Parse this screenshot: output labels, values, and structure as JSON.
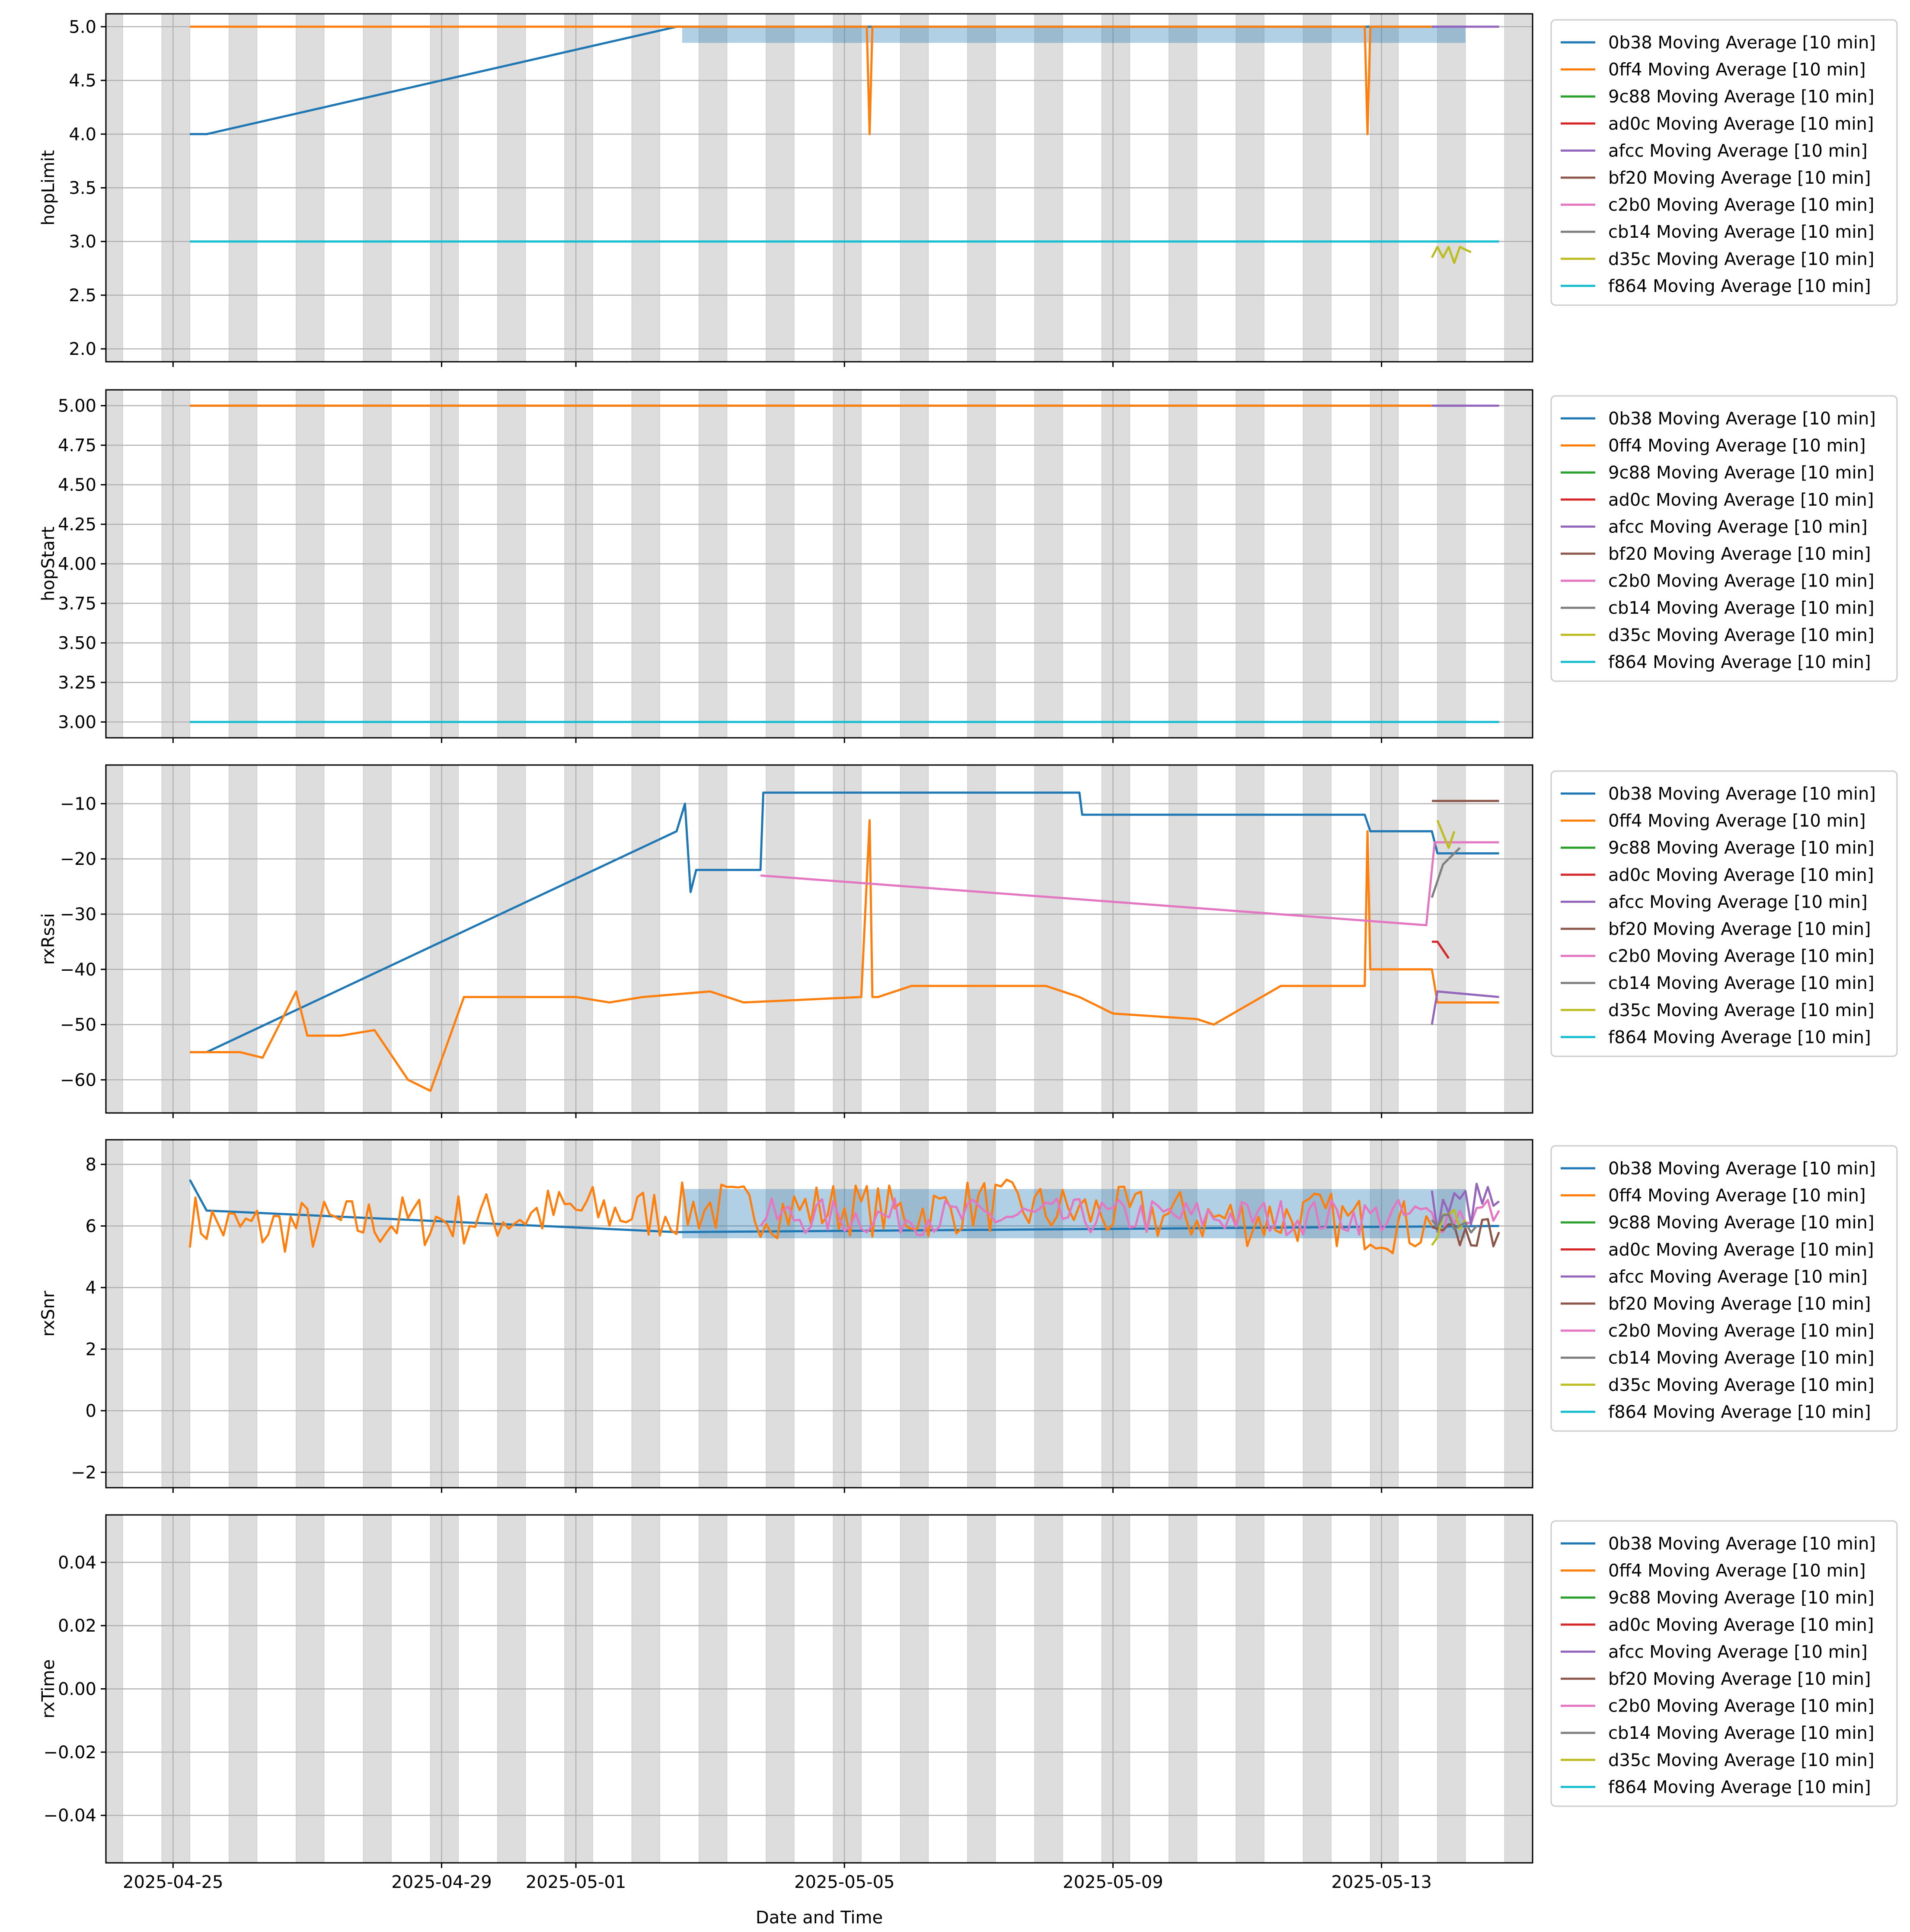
{
  "figure": {
    "xlabel": "Date and Time",
    "x_tick_labels": [
      "2025-04-25",
      "2025-04-29",
      "2025-05-01",
      "2025-05-05",
      "2025-05-09",
      "2025-05-13"
    ],
    "x_tick_dates": [
      "2025-04-25",
      "2025-04-29",
      "2025-05-01",
      "2025-05-05",
      "2025-05-09",
      "2025-05-13"
    ],
    "xlim": [
      "2025-04-24T00:00",
      "2025-05-15T06:00"
    ],
    "night_shading": {
      "color": "#dddddd",
      "from": "20:00",
      "to": "06:00"
    }
  },
  "series_colors": {
    "0b38": "#1f77b4",
    "0ff4": "#ff7f0e",
    "9c88": "#2ca02c",
    "ad0c": "#d62728",
    "afcc": "#9467bd",
    "bf20": "#8c564b",
    "c2b0": "#e377c2",
    "cb14": "#7f7f7f",
    "d35c": "#bcbd22",
    "f864": "#17becf"
  },
  "legend_labels": [
    "0b38 Moving Average [10 min]",
    "0ff4 Moving Average [10 min]",
    "9c88 Moving Average [10 min]",
    "ad0c Moving Average [10 min]",
    "afcc Moving Average [10 min]",
    "bf20 Moving Average [10 min]",
    "c2b0 Moving Average [10 min]",
    "cb14 Moving Average [10 min]",
    "d35c Moving Average [10 min]",
    "f864 Moving Average [10 min]"
  ],
  "chart_data": [
    {
      "type": "line",
      "ylabel": "hopLimit",
      "ylim": [
        1.88,
        5.12
      ],
      "y_ticks": [
        2.0,
        2.5,
        3.0,
        3.5,
        4.0,
        4.5,
        5.0
      ],
      "y_tick_labels": [
        "2.0",
        "2.5",
        "3.0",
        "3.5",
        "4.0",
        "4.5",
        "5.0"
      ],
      "grid": true,
      "legend": "outside-right",
      "series": [
        {
          "key": "0b38",
          "x": [
            "2025-04-25T06:00",
            "2025-04-25T12:00",
            "2025-05-02T12:00",
            "2025-05-14T06:00"
          ],
          "y": [
            4.0,
            4.0,
            5.0,
            5.0
          ],
          "band": {
            "x": [
              "2025-05-02T14:00",
              "2025-05-14T06:00"
            ],
            "ylow": 4.85,
            "yhigh": 5.0
          }
        },
        {
          "key": "0ff4",
          "x": [
            "2025-04-25T06:00",
            "2025-05-05T08:00",
            "2025-05-05T09:00",
            "2025-05-05T10:00",
            "2025-05-12T18:00",
            "2025-05-12T19:00",
            "2025-05-12T20:00",
            "2025-05-13T18:00"
          ],
          "y": [
            5.0,
            5.0,
            4.0,
            5.0,
            5.0,
            4.0,
            5.0,
            5.0
          ]
        },
        {
          "key": "afcc",
          "x": [
            "2025-05-13T18:00",
            "2025-05-14T18:00"
          ],
          "y": [
            5.0,
            5.0
          ]
        },
        {
          "key": "f864",
          "x": [
            "2025-04-25T06:00",
            "2025-05-14T18:00"
          ],
          "y": [
            3.0,
            3.0
          ]
        },
        {
          "key": "d35c",
          "x": [
            "2025-05-13T18:00",
            "2025-05-13T20:00",
            "2025-05-13T22:00",
            "2025-05-14T00:00",
            "2025-05-14T02:00",
            "2025-05-14T04:00",
            "2025-05-14T08:00"
          ],
          "y": [
            2.85,
            2.95,
            2.85,
            2.95,
            2.8,
            2.95,
            2.9
          ]
        }
      ]
    },
    {
      "type": "line",
      "ylabel": "hopStart",
      "ylim": [
        2.9,
        5.1
      ],
      "y_ticks": [
        3.0,
        3.25,
        3.5,
        3.75,
        4.0,
        4.25,
        4.5,
        4.75,
        5.0
      ],
      "y_tick_labels": [
        "3.00",
        "3.25",
        "3.50",
        "3.75",
        "4.00",
        "4.25",
        "4.50",
        "4.75",
        "5.00"
      ],
      "grid": true,
      "legend": "outside-right",
      "series": [
        {
          "key": "0b38",
          "x": [
            "2025-04-25T06:00",
            "2025-05-14T06:00"
          ],
          "y": [
            5.0,
            5.0
          ]
        },
        {
          "key": "0ff4",
          "x": [
            "2025-04-25T06:00",
            "2025-05-13T18:00"
          ],
          "y": [
            5.0,
            5.0
          ]
        },
        {
          "key": "afcc",
          "x": [
            "2025-05-13T18:00",
            "2025-05-14T18:00"
          ],
          "y": [
            5.0,
            5.0
          ]
        },
        {
          "key": "f864",
          "x": [
            "2025-04-25T06:00",
            "2025-05-14T18:00"
          ],
          "y": [
            3.0,
            3.0
          ]
        }
      ]
    },
    {
      "type": "line",
      "ylabel": "rxRssi",
      "ylim": [
        -66,
        -3
      ],
      "y_ticks": [
        -60,
        -50,
        -40,
        -30,
        -20,
        -10
      ],
      "y_tick_labels": [
        "−60",
        "−50",
        "−40",
        "−30",
        "−20",
        "−10"
      ],
      "grid": true,
      "legend": "outside-right",
      "series": [
        {
          "key": "0b38",
          "x": [
            "2025-04-25T06:00",
            "2025-04-25T12:00",
            "2025-05-02T12:00",
            "2025-05-02T15:00",
            "2025-05-02T17:00",
            "2025-05-02T19:00",
            "2025-05-03T18:00",
            "2025-05-03T19:00",
            "2025-05-08T12:00",
            "2025-05-08T13:00",
            "2025-05-12T18:00",
            "2025-05-12T20:00",
            "2025-05-13T18:00",
            "2025-05-13T20:00",
            "2025-05-14T18:00"
          ],
          "y": [
            -55,
            -55,
            -15,
            -10,
            -26,
            -22,
            -22,
            -8,
            -8,
            -12,
            -12,
            -15,
            -15,
            -19,
            -19
          ]
        },
        {
          "key": "0ff4",
          "x": [
            "2025-04-25T06:00",
            "2025-04-26T00:00",
            "2025-04-26T08:00",
            "2025-04-26T20:00",
            "2025-04-27T00:00",
            "2025-04-27T12:00",
            "2025-04-28T00:00",
            "2025-04-28T12:00",
            "2025-04-28T20:00",
            "2025-04-29T08:00",
            "2025-05-01T00:00",
            "2025-05-01T12:00",
            "2025-05-02T00:00",
            "2025-05-03T00:00",
            "2025-05-03T12:00",
            "2025-05-05T06:00",
            "2025-05-05T09:00",
            "2025-05-05T10:00",
            "2025-05-05T12:00",
            "2025-05-06T00:00",
            "2025-05-08T00:00",
            "2025-05-08T12:00",
            "2025-05-09T00:00",
            "2025-05-10T06:00",
            "2025-05-10T12:00",
            "2025-05-11T12:00",
            "2025-05-12T18:00",
            "2025-05-12T19:00",
            "2025-05-12T20:00",
            "2025-05-13T18:00",
            "2025-05-13T20:00",
            "2025-05-14T18:00"
          ],
          "y": [
            -55,
            -55,
            -56,
            -44,
            -52,
            -52,
            -51,
            -60,
            -62,
            -45,
            -45,
            -46,
            -45,
            -44,
            -46,
            -45,
            -13,
            -45,
            -45,
            -43,
            -43,
            -45,
            -48,
            -49,
            -50,
            -43,
            -43,
            -15,
            -40,
            -40,
            -46,
            -46
          ]
        },
        {
          "key": "c2b0",
          "x": [
            "2025-05-03T18:00",
            "2025-05-13T16:00",
            "2025-05-13T19:00",
            "2025-05-14T18:00"
          ],
          "y": [
            -23,
            -32,
            -17,
            -17
          ]
        },
        {
          "key": "bf20",
          "x": [
            "2025-05-13T18:00",
            "2025-05-14T18:00"
          ],
          "y": [
            -9.5,
            -9.5
          ]
        },
        {
          "key": "afcc",
          "x": [
            "2025-05-13T18:00",
            "2025-05-13T20:00",
            "2025-05-14T18:00"
          ],
          "y": [
            -50,
            -44,
            -45
          ]
        },
        {
          "key": "ad0c",
          "x": [
            "2025-05-13T18:00",
            "2025-05-13T20:00",
            "2025-05-14T00:00"
          ],
          "y": [
            -35,
            -35,
            -38
          ]
        },
        {
          "key": "cb14",
          "x": [
            "2025-05-13T18:00",
            "2025-05-13T22:00",
            "2025-05-14T04:00"
          ],
          "y": [
            -27,
            -21,
            -18
          ]
        },
        {
          "key": "d35c",
          "x": [
            "2025-05-13T20:00",
            "2025-05-14T00:00",
            "2025-05-14T02:00"
          ],
          "y": [
            -13,
            -18,
            -15
          ]
        }
      ]
    },
    {
      "type": "line",
      "ylabel": "rxSnr",
      "ylim": [
        -2.5,
        8.8
      ],
      "y_ticks": [
        -2,
        0,
        2,
        4,
        6,
        8
      ],
      "y_tick_labels": [
        "−2",
        "0",
        "2",
        "4",
        "6",
        "8"
      ],
      "grid": true,
      "legend": "outside-right",
      "series": [
        {
          "key": "0b38",
          "x": [
            "2025-04-25T06:00",
            "2025-04-25T12:00",
            "2025-05-02T12:00",
            "2025-05-14T18:00"
          ],
          "y": [
            7.5,
            6.5,
            5.8,
            6.0
          ],
          "band": {
            "x": [
              "2025-05-02T14:00",
              "2025-05-14T06:00"
            ],
            "ylow": 5.6,
            "yhigh": 7.2
          }
        },
        {
          "key": "0ff4",
          "x": [
            "2025-04-25T06:00",
            "2025-04-26T00:00",
            "2025-04-27T00:00",
            "2025-04-28T00:00",
            "2025-04-29T00:00",
            "2025-04-30T00:00",
            "2025-05-01T00:00",
            "2025-05-02T00:00",
            "2025-05-03T00:00",
            "2025-05-04T00:00",
            "2025-05-05T00:00",
            "2025-05-06T00:00",
            "2025-05-07T00:00",
            "2025-05-08T00:00",
            "2025-05-09T00:00",
            "2025-05-10T00:00",
            "2025-05-11T00:00",
            "2025-05-12T00:00",
            "2025-05-13T00:00",
            "2025-05-13T18:00"
          ],
          "y": [
            6.2,
            5.9,
            6.0,
            6.1,
            6.2,
            6.3,
            6.5,
            6.4,
            6.6,
            6.5,
            6.6,
            6.4,
            6.7,
            6.5,
            6.4,
            6.3,
            6.2,
            6.3,
            6.0,
            6.0
          ],
          "noise": 0.9
        },
        {
          "key": "c2b0",
          "x": [
            "2025-05-03T18:00",
            "2025-05-13T16:00",
            "2025-05-14T18:00"
          ],
          "y": [
            6.3,
            6.3,
            6.5
          ],
          "noise": 0.6
        },
        {
          "key": "afcc",
          "x": [
            "2025-05-13T18:00",
            "2025-05-14T18:00"
          ],
          "y": [
            6.5,
            6.8
          ],
          "noise": 0.8
        },
        {
          "key": "bf20",
          "x": [
            "2025-05-13T18:00",
            "2025-05-14T18:00"
          ],
          "y": [
            5.6,
            5.8
          ],
          "noise": 0.5
        },
        {
          "key": "d35c",
          "x": [
            "2025-05-13T18:00",
            "2025-05-14T06:00"
          ],
          "y": [
            5.8,
            6.2
          ],
          "noise": 0.5
        },
        {
          "key": "cb14",
          "x": [
            "2025-05-13T18:00",
            "2025-05-14T10:00"
          ],
          "y": [
            6.5,
            6.0
          ],
          "noise": 0.5
        }
      ]
    },
    {
      "type": "line",
      "ylabel": "rxTime",
      "ylim": [
        -0.055,
        0.055
      ],
      "y_ticks": [
        -0.04,
        -0.02,
        0.0,
        0.02,
        0.04
      ],
      "y_tick_labels": [
        "−0.04",
        "−0.02",
        "0.00",
        "0.02",
        "0.04"
      ],
      "grid": true,
      "legend": "outside-right",
      "series": []
    }
  ]
}
